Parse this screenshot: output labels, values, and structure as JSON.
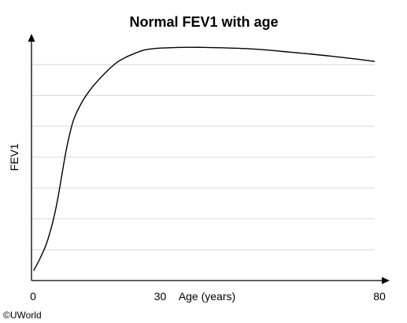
{
  "chart_data": {
    "type": "line",
    "title": "Normal FEV1 with age",
    "xlabel": "Age (years)",
    "ylabel": "FEV1",
    "xlim": [
      0,
      80
    ],
    "ylim": [
      0,
      100
    ],
    "x_ticks": [
      0,
      30,
      80
    ],
    "x_tick_labels": [
      "0",
      "30",
      "80"
    ],
    "y_ticks": [],
    "grid": "horizontal",
    "grid_levels": [
      0,
      12.5,
      25,
      37.5,
      50,
      62.5,
      75,
      87.5
    ],
    "legend": "none",
    "series": [
      {
        "x": [
          0.5,
          2,
          3.5,
          5,
          6,
          7,
          8,
          9,
          10,
          12,
          14,
          16,
          18,
          20,
          22,
          24,
          26,
          28,
          30,
          35,
          40,
          45,
          50,
          55,
          60,
          65,
          70,
          75,
          80
        ],
        "y": [
          4,
          9,
          15,
          24,
          32,
          42,
          52,
          60,
          66,
          73,
          78,
          82,
          85.5,
          88.5,
          90.5,
          92,
          93.3,
          93.9,
          94.2,
          94.5,
          94.5,
          94.3,
          94,
          93.4,
          92.6,
          91.8,
          90.9,
          89.9,
          88.8
        ],
        "color": "#000000"
      }
    ],
    "colors": {
      "line": "#000000",
      "axis": "#000000",
      "grid": "#d9d9d9"
    }
  },
  "copyright": "©UWorld"
}
